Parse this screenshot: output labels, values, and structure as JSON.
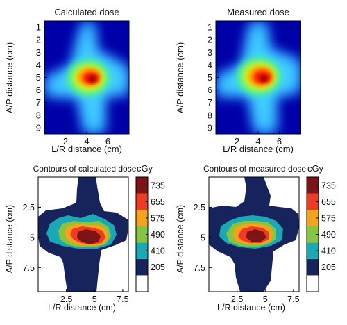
{
  "chart_data": [
    {
      "type": "heatmap",
      "panel": "top-left",
      "title": "Calculated dose",
      "xlabel": "L/R distance (cm)",
      "ylabel": "A/P distance (cm)",
      "x_ticks": [
        2,
        4,
        6
      ],
      "y_ticks": [
        1,
        2,
        3,
        4,
        5,
        6,
        7,
        8,
        9
      ],
      "xlim": [
        0,
        8
      ],
      "ylim": [
        0.5,
        9.5
      ],
      "y_inverted": true,
      "colormap": "jet",
      "peak_center": {
        "x": 4.2,
        "y": 5.0
      },
      "peak_dose_cGy": 735
    },
    {
      "type": "heatmap",
      "panel": "top-right",
      "title": "Measured dose",
      "xlabel": "L/R distance (cm)",
      "ylabel": "A/P distance (cm)",
      "x_ticks": [
        2,
        4,
        6
      ],
      "y_ticks": [
        1,
        2,
        3,
        4,
        5,
        6,
        7,
        8,
        9
      ],
      "xlim": [
        0,
        8
      ],
      "ylim": [
        0.5,
        9.5
      ],
      "y_inverted": true,
      "colormap": "jet",
      "peak_center": {
        "x": 4.1,
        "y": 4.9
      },
      "peak_dose_cGy": 735
    },
    {
      "type": "heatmap",
      "panel": "bottom-left",
      "title": "Contours of calculated dose",
      "xlabel": "L/R distance (cm)",
      "ylabel": "A/P distance (cm)",
      "x_ticks": [
        2.5,
        5,
        7.5
      ],
      "y_ticks": [
        2.5,
        5,
        7.5
      ],
      "xlim": [
        0,
        8
      ],
      "ylim": [
        0,
        9.5
      ],
      "y_inverted": true,
      "contour_levels_cGy": [
        205,
        410,
        490,
        575,
        655,
        735
      ],
      "colorbar_label": "cGy",
      "colorbar_ticks": [
        "735",
        "655",
        "575",
        "490",
        "410",
        "205"
      ],
      "level_colors": [
        "#ffffff",
        "#17235c",
        "#1aa8b7",
        "#86c541",
        "#f6a21e",
        "#ef3a24",
        "#7d1416"
      ]
    },
    {
      "type": "heatmap",
      "panel": "bottom-right",
      "title": "Contours of measured dose",
      "xlabel": "L/R distance (cm)",
      "ylabel": "A/P distance (cm)",
      "x_ticks": [
        2.5,
        5,
        7.5
      ],
      "y_ticks": [
        2.5,
        5,
        7.5
      ],
      "xlim": [
        0,
        8
      ],
      "ylim": [
        0,
        9.5
      ],
      "y_inverted": true,
      "contour_levels_cGy": [
        205,
        410,
        490,
        575,
        655,
        735
      ],
      "colorbar_label": "cGy",
      "colorbar_ticks": [
        "735",
        "655",
        "575",
        "490",
        "410",
        "205"
      ],
      "level_colors": [
        "#ffffff",
        "#17235c",
        "#1aa8b7",
        "#86c541",
        "#f6a21e",
        "#ef3a24",
        "#7d1416"
      ]
    }
  ]
}
